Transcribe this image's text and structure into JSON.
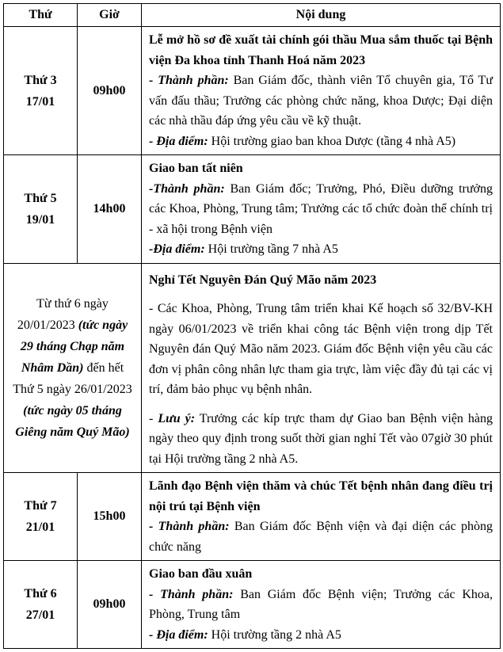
{
  "table": {
    "header": {
      "day": "Thứ",
      "time": "Giờ",
      "content": "Nội dung"
    },
    "rows": [
      {
        "day_lines": [
          "Thứ 3",
          "17/01"
        ],
        "time": "09h00",
        "paragraphs": [
          [
            {
              "s": "b",
              "t": "Lễ mở hồ sơ đề xuất tài chính gói thầu Mua sắm thuốc tại Bệnh viện Đa khoa tỉnh Thanh Hoá năm 2023"
            }
          ],
          [
            {
              "s": "bi",
              "t": "- Thành phần:"
            },
            {
              "s": "n",
              "t": " Ban Giám đốc, thành viên Tổ chuyên gia, Tổ Tư vấn đấu thầu; Trưởng các phòng chức năng, khoa Dược; Đại diện các nhà thầu đáp ứng yêu cầu về kỹ thuật."
            }
          ],
          [
            {
              "s": "bi",
              "t": "- Địa điểm:"
            },
            {
              "s": "n",
              "t": " Hội trường giao ban khoa Dược (tầng 4 nhà A5)"
            }
          ]
        ]
      },
      {
        "day_lines": [
          "Thứ 5",
          "19/01"
        ],
        "time": "14h00",
        "paragraphs": [
          [
            {
              "s": "b",
              "t": "Giao ban tất niên"
            }
          ],
          [
            {
              "s": "bi",
              "t": "-Thành phần:"
            },
            {
              "s": "n",
              "t": " Ban Giám đốc; Trưởng, Phó, Điều dưỡng trưởng các Khoa, Phòng, Trung tâm; Trưởng các tổ chức đoàn thể chính trị - xã hội trong Bệnh viện"
            }
          ],
          [
            {
              "s": "bi",
              "t": "-Địa điểm:"
            },
            {
              "s": "n",
              "t": " Hội trường tầng 7 nhà A5"
            }
          ]
        ]
      },
      {
        "day_colspan": 2,
        "spaced": true,
        "day_segments": [
          {
            "s": "n",
            "t": "Từ thứ 6 ngày 20/01/2023 "
          },
          {
            "s": "bi",
            "t": "(tức ngày 29 tháng Chạp năm Nhâm Dần)"
          },
          {
            "s": "n",
            "t": " đến hết Thứ 5 ngày 26/01/2023 "
          },
          {
            "s": "bi",
            "t": "(tức ngày 05 tháng Giêng năm Quý Mão)"
          }
        ],
        "paragraphs": [
          [
            {
              "s": "b",
              "t": "Nghỉ Tết Nguyên Đán Quý Mão năm 2023"
            }
          ],
          [
            {
              "s": "n",
              "t": "- Các Khoa, Phòng, Trung tâm triển khai Kế hoạch số 32/BV-KH ngày 06/01/2023 về triển khai công tác Bệnh viện trong dịp Tết Nguyên đán Quý Mão năm 2023. Giám đốc Bệnh viện yêu cầu các đơn vị phân công nhân lực tham gia trực, làm việc đầy đủ tại các vị trí, đảm bảo phục vụ bệnh nhân."
            }
          ],
          [
            {
              "s": "n",
              "t": "- "
            },
            {
              "s": "bi",
              "t": "Lưu ý:"
            },
            {
              "s": "n",
              "t": " Trưởng các kíp trực tham dự Giao ban Bệnh viện hàng ngày theo quy định trong suốt thời gian nghỉ Tết vào 07giờ 30 phút tại Hội trường tầng 2 nhà A5."
            }
          ]
        ]
      },
      {
        "day_lines": [
          "Thứ 7",
          "21/01"
        ],
        "time": "15h00",
        "paragraphs": [
          [
            {
              "s": "b",
              "t": "Lãnh đạo Bệnh viện thăm và chúc Tết bệnh nhân đang điều trị nội trú tại Bệnh viện"
            }
          ],
          [
            {
              "s": "bi",
              "t": "- Thành phần:"
            },
            {
              "s": "n",
              "t": " Ban Giám đốc Bệnh viện và đại diện các phòng chức năng"
            }
          ]
        ]
      },
      {
        "day_lines": [
          "Thứ 6",
          "27/01"
        ],
        "time": "09h00",
        "paragraphs": [
          [
            {
              "s": "b",
              "t": "Giao ban đầu xuân"
            }
          ],
          [
            {
              "s": "bi",
              "t": "- Thành phần:"
            },
            {
              "s": "n",
              "t": " Ban Giám đốc Bệnh viện; Trưởng các Khoa, Phòng, Trung tâm"
            }
          ],
          [
            {
              "s": "bi",
              "t": "- Địa điểm:"
            },
            {
              "s": "n",
              "t": " Hội trường tầng 2 nhà A5"
            }
          ]
        ]
      }
    ]
  }
}
